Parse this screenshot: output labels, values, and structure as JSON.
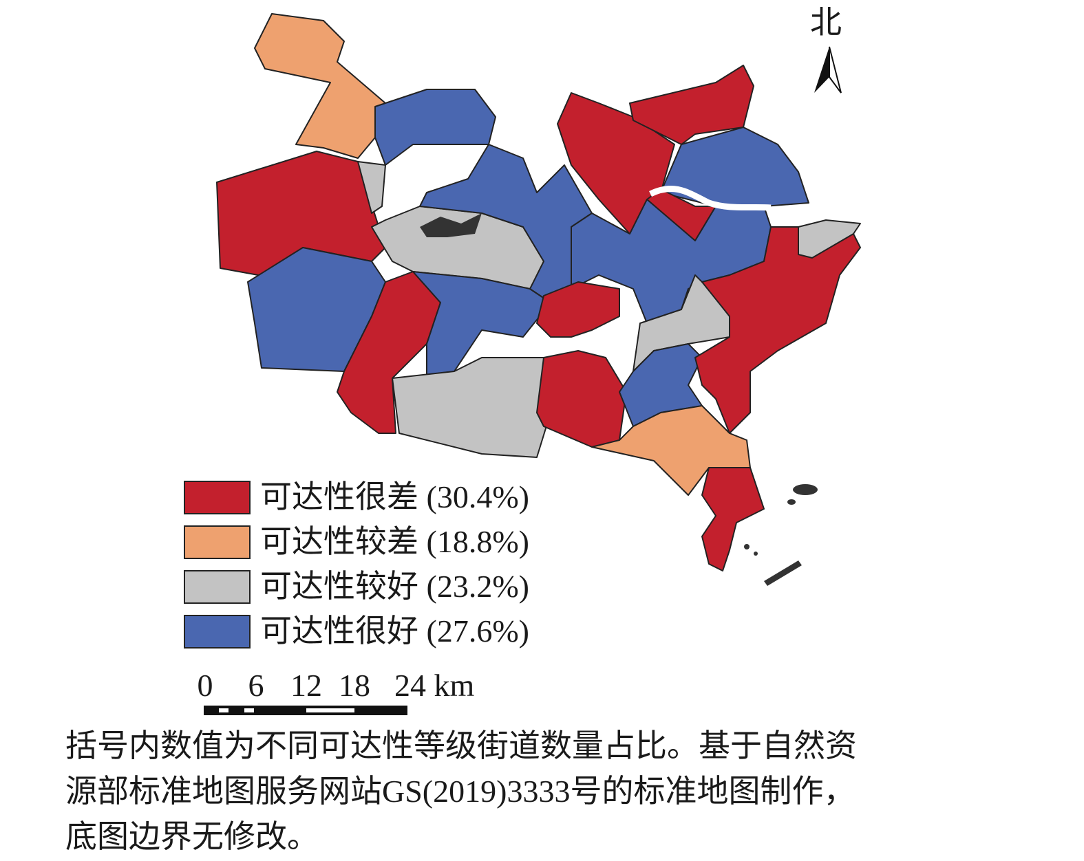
{
  "north": "北",
  "legend": [
    {
      "label": "可达性很差 (30.4%)",
      "color": "#c3202d"
    },
    {
      "label": "可达性较差 (18.8%)",
      "color": "#eea16f"
    },
    {
      "label": "可达性较好 (23.2%)",
      "color": "#c3c3c3"
    },
    {
      "label": "可达性很好 (27.6%)",
      "color": "#4a67b0"
    }
  ],
  "scale": [
    "0",
    "6",
    "12",
    "18",
    "24 km"
  ],
  "caption": [
    "括号内数值为不同可达性等级街道数量占比。基于自然资",
    "源部标准地图服务网站GS(2019)3333号的标准地图制作，",
    "底图边界无修改。"
  ]
}
